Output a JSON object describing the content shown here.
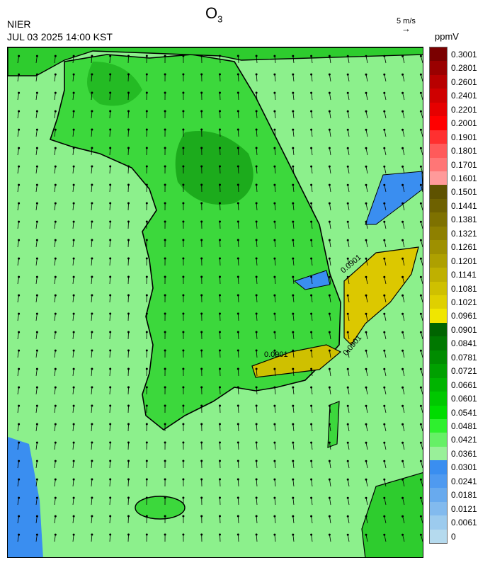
{
  "header": {
    "title_main": "O",
    "title_sub": "3",
    "agency": "NIER",
    "timestamp": "JUL 03 2025 14:00 KST",
    "wind_scale_label": "5 m/s",
    "wind_arrow": "→",
    "unit": "ppmV"
  },
  "legend": [
    {
      "label": "0.3001",
      "color": "#7a0000"
    },
    {
      "label": "0.2801",
      "color": "#9a0000"
    },
    {
      "label": "0.2601",
      "color": "#b80000"
    },
    {
      "label": "0.2401",
      "color": "#cf0000"
    },
    {
      "label": "0.2201",
      "color": "#e60000"
    },
    {
      "label": "0.2001",
      "color": "#ff0000"
    },
    {
      "label": "0.1901",
      "color": "#ff3030"
    },
    {
      "label": "0.1801",
      "color": "#ff5a5a"
    },
    {
      "label": "0.1701",
      "color": "#ff7676"
    },
    {
      "label": "0.1601",
      "color": "#ff9a9a"
    },
    {
      "label": "0.1501",
      "color": "#5e5200"
    },
    {
      "label": "0.1441",
      "color": "#6e6100"
    },
    {
      "label": "0.1381",
      "color": "#7e7100"
    },
    {
      "label": "0.1321",
      "color": "#8e8000"
    },
    {
      "label": "0.1261",
      "color": "#9e9000"
    },
    {
      "label": "0.1201",
      "color": "#aea000"
    },
    {
      "label": "0.1141",
      "color": "#bfb000"
    },
    {
      "label": "0.1081",
      "color": "#cfc000"
    },
    {
      "label": "0.1021",
      "color": "#dfd000"
    },
    {
      "label": "0.0961",
      "color": "#f0e600"
    },
    {
      "label": "0.0901",
      "color": "#006400"
    },
    {
      "label": "0.0841",
      "color": "#007800"
    },
    {
      "label": "0.0781",
      "color": "#008c00"
    },
    {
      "label": "0.0721",
      "color": "#00a000"
    },
    {
      "label": "0.0661",
      "color": "#00b400"
    },
    {
      "label": "0.0601",
      "color": "#00c800"
    },
    {
      "label": "0.0541",
      "color": "#00dc00"
    },
    {
      "label": "0.0481",
      "color": "#2ef02e"
    },
    {
      "label": "0.0421",
      "color": "#66f066"
    },
    {
      "label": "0.0361",
      "color": "#99f099"
    },
    {
      "label": "0.0301",
      "color": "#3a8ef0"
    },
    {
      "label": "0.0241",
      "color": "#4f9af0"
    },
    {
      "label": "0.0181",
      "color": "#68aaee"
    },
    {
      "label": "0.0121",
      "color": "#82baee"
    },
    {
      "label": "0.0061",
      "color": "#9ccbee"
    },
    {
      "label": "0",
      "color": "#b5daee"
    }
  ],
  "contour_labels": [
    "0.0901",
    "0.0901",
    "0.0901"
  ],
  "colors": {
    "land_border": "#000000",
    "arrow": "#000000"
  }
}
